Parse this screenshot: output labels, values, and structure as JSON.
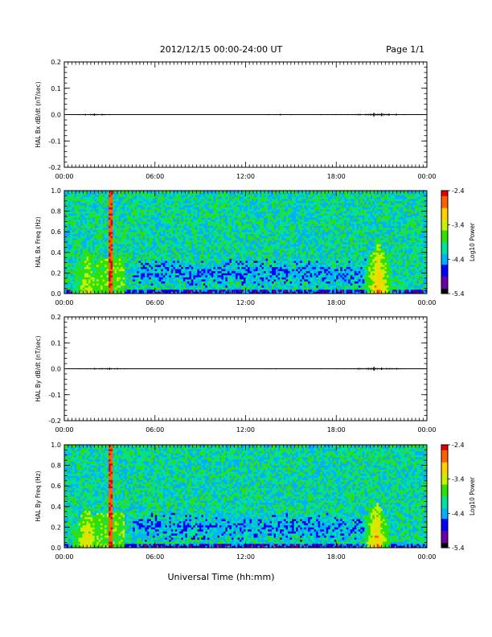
{
  "header": {
    "title": "2012/12/15  00:00-24:00 UT",
    "page": "Page 1/1"
  },
  "x_tick_labels": [
    "00:00",
    "06:00",
    "12:00",
    "18:00",
    "00:00"
  ],
  "x_axis_title": "Universal Time (hh:mm)",
  "colors": {
    "trace": "#000000",
    "colormap": [
      "#000000",
      "#6a00a8",
      "#0000ff",
      "#00b0ff",
      "#00e0a0",
      "#30e000",
      "#c8f000",
      "#ffd000",
      "#ff6000",
      "#e00000"
    ]
  },
  "chart_data": [
    {
      "type": "line",
      "panel": "time-series",
      "ylabel": "HAL Bx dB/dt (nT/sec)",
      "xlim": [
        0,
        24
      ],
      "ylim": [
        -0.2,
        0.2
      ],
      "y_tick_labels": [
        "0.2",
        "0.1",
        "0.0",
        "-0.1",
        "-0.2"
      ],
      "y_ticks": [
        0.2,
        0.1,
        0.0,
        -0.1,
        -0.2
      ],
      "series": [
        {
          "x": [
            0,
            1.4,
            2.0,
            2.5,
            3.0,
            3.5,
            4.0,
            6.0,
            8.0,
            10.0,
            12.0,
            13.5,
            14.3,
            15.0,
            16.0,
            17.0,
            18.0,
            19.5,
            20.5,
            21.0,
            21.5,
            22.0,
            22.5,
            24.0
          ],
          "values": [
            0,
            0.003,
            0.004,
            0.003,
            0.002,
            0.001,
            0.001,
            0.001,
            0.001,
            0.001,
            0.001,
            0.002,
            0.003,
            0.002,
            0.001,
            0.002,
            0.002,
            0.003,
            0.007,
            0.006,
            0.004,
            0.003,
            0.002,
            0
          ]
        }
      ]
    },
    {
      "type": "heatmap",
      "panel": "spectrogram",
      "ylabel": "HAL Bx Freq (Hz)",
      "xlim": [
        0,
        24
      ],
      "ylim": [
        0,
        1.0
      ],
      "y_tick_labels": [
        "1.0",
        "0.8",
        "0.6",
        "0.4",
        "0.2",
        "0.0"
      ],
      "y_ticks": [
        1.0,
        0.8,
        0.6,
        0.4,
        0.2,
        0.0
      ],
      "colorbar": {
        "label": "Log10 Power",
        "range": [
          -5.4,
          -2.4
        ],
        "tick_labels": [
          "-2.4",
          "-3.4",
          "-4.4",
          "-5.4"
        ],
        "ticks": [
          -2.4,
          -3.4,
          -4.4,
          -5.4
        ]
      },
      "features": [
        {
          "time_h": 1.5,
          "freq_max_hz": 0.45,
          "peak_log_power": -3.3
        },
        {
          "time_h": 3.05,
          "freq_max_hz": 1.0,
          "peak_log_power": -2.6
        },
        {
          "time_h": 20.8,
          "freq_max_hz": 0.5,
          "peak_log_power": -2.7
        }
      ]
    },
    {
      "type": "line",
      "panel": "time-series",
      "ylabel": "HAL By dB/dt (nT/sec)",
      "xlim": [
        0,
        24
      ],
      "ylim": [
        -0.2,
        0.2
      ],
      "y_tick_labels": [
        "0.2",
        "0.1",
        "0.0",
        "-0.1",
        "-0.2"
      ],
      "y_ticks": [
        0.2,
        0.1,
        0.0,
        -0.1,
        -0.2
      ],
      "series": [
        {
          "x": [
            0,
            1.0,
            2.0,
            3.0,
            3.5,
            4.0,
            6.0,
            8.0,
            10.0,
            12.0,
            13.5,
            14.0,
            15.0,
            17.0,
            18.0,
            19.5,
            20.5,
            21.0,
            22.0,
            24.0
          ],
          "values": [
            0,
            0.002,
            0.003,
            0.004,
            0.003,
            0.002,
            0.001,
            0.001,
            0.001,
            0.001,
            0.002,
            0.002,
            0.001,
            0.002,
            0.002,
            0.003,
            0.008,
            0.005,
            0.003,
            0
          ]
        }
      ]
    },
    {
      "type": "heatmap",
      "panel": "spectrogram",
      "ylabel": "HAL By Freq (Hz)",
      "xlim": [
        0,
        24
      ],
      "ylim": [
        0,
        1.0
      ],
      "y_tick_labels": [
        "1.0",
        "0.8",
        "0.6",
        "0.4",
        "0.2",
        "0.0"
      ],
      "y_ticks": [
        1.0,
        0.8,
        0.6,
        0.4,
        0.2,
        0.0
      ],
      "colorbar": {
        "label": "Log10 Power",
        "range": [
          -5.4,
          -2.4
        ],
        "tick_labels": [
          "-2.4",
          "-3.4",
          "-4.4",
          "-5.4"
        ],
        "ticks": [
          -2.4,
          -3.4,
          -4.4,
          -5.4
        ]
      },
      "features": [
        {
          "time_h": 1.5,
          "freq_max_hz": 0.4,
          "peak_log_power": -3.0
        },
        {
          "time_h": 3.05,
          "freq_max_hz": 1.0,
          "peak_log_power": -2.6
        },
        {
          "time_h": 20.7,
          "freq_max_hz": 0.45,
          "peak_log_power": -2.8
        }
      ]
    }
  ]
}
